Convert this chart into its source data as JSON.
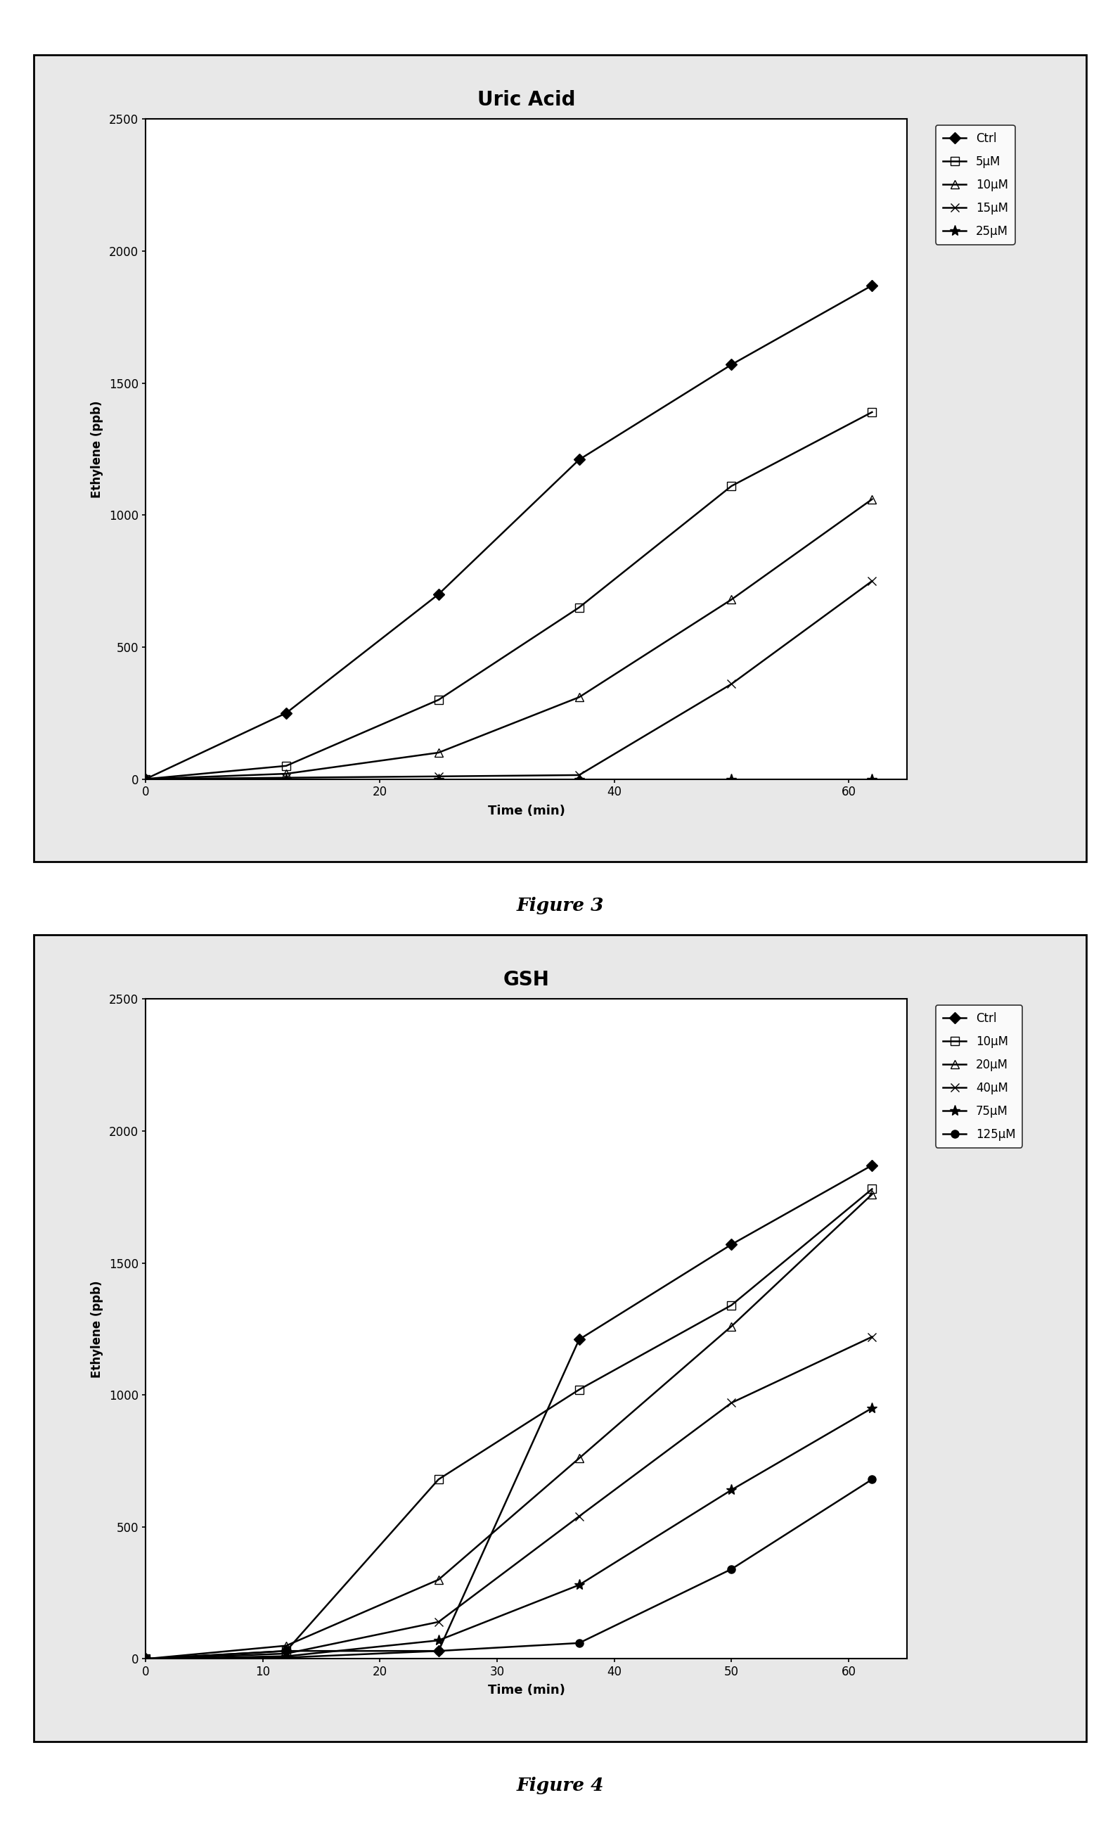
{
  "fig3": {
    "title": "Uric Acid",
    "xlabel": "Time (min)",
    "ylabel": "Ethylene (ppb)",
    "ylim": [
      0,
      2500
    ],
    "xlim": [
      0,
      65
    ],
    "xticks": [
      0,
      20,
      40,
      60
    ],
    "yticks": [
      0,
      500,
      1000,
      1500,
      2000,
      2500
    ],
    "series": [
      {
        "label": "Ctrl",
        "x": [
          0,
          12,
          25,
          37,
          50,
          62
        ],
        "y": [
          0,
          250,
          700,
          1210,
          1570,
          1870
        ],
        "marker": "D",
        "fillstyle": "full",
        "markersize": 8
      },
      {
        "label": "5μM",
        "x": [
          0,
          12,
          25,
          37,
          50,
          62
        ],
        "y": [
          0,
          50,
          300,
          650,
          1110,
          1390
        ],
        "marker": "s",
        "fillstyle": "none",
        "markersize": 8
      },
      {
        "label": "10μM",
        "x": [
          0,
          12,
          25,
          37,
          50,
          62
        ],
        "y": [
          0,
          20,
          100,
          310,
          680,
          1060
        ],
        "marker": "^",
        "fillstyle": "none",
        "markersize": 8
      },
      {
        "label": "15μM",
        "x": [
          0,
          12,
          25,
          37,
          50,
          62
        ],
        "y": [
          0,
          5,
          10,
          15,
          360,
          750
        ],
        "marker": "x",
        "fillstyle": "full",
        "markersize": 9
      },
      {
        "label": "25μM",
        "x": [
          0,
          12,
          25,
          37,
          50,
          62
        ],
        "y": [
          0,
          0,
          0,
          0,
          0,
          0
        ],
        "marker": "*",
        "fillstyle": "full",
        "markersize": 11
      }
    ]
  },
  "fig4": {
    "title": "GSH",
    "xlabel": "Time (min)",
    "ylabel": "Ethylene (ppb)",
    "ylim": [
      0,
      2500
    ],
    "xlim": [
      0,
      65
    ],
    "xticks": [
      0,
      10,
      20,
      30,
      40,
      50,
      60
    ],
    "yticks": [
      0,
      500,
      1000,
      1500,
      2000,
      2500
    ],
    "series": [
      {
        "label": "Ctrl",
        "x": [
          0,
          12,
          25,
          37,
          50,
          62
        ],
        "y": [
          0,
          30,
          30,
          1210,
          1570,
          1870
        ],
        "marker": "D",
        "fillstyle": "full",
        "markersize": 8
      },
      {
        "label": "10μM",
        "x": [
          0,
          12,
          25,
          37,
          50,
          62
        ],
        "y": [
          0,
          30,
          680,
          1020,
          1340,
          1780
        ],
        "marker": "s",
        "fillstyle": "none",
        "markersize": 8
      },
      {
        "label": "20μM",
        "x": [
          0,
          12,
          25,
          37,
          50,
          62
        ],
        "y": [
          0,
          50,
          300,
          760,
          1260,
          1760
        ],
        "marker": "^",
        "fillstyle": "none",
        "markersize": 8
      },
      {
        "label": "40μM",
        "x": [
          0,
          12,
          25,
          37,
          50,
          62
        ],
        "y": [
          0,
          20,
          140,
          540,
          970,
          1220
        ],
        "marker": "x",
        "fillstyle": "full",
        "markersize": 9
      },
      {
        "label": "75μM",
        "x": [
          0,
          12,
          25,
          37,
          50,
          62
        ],
        "y": [
          0,
          10,
          70,
          280,
          640,
          950
        ],
        "marker": "*",
        "fillstyle": "full",
        "markersize": 11
      },
      {
        "label": "125μM",
        "x": [
          0,
          12,
          25,
          37,
          50,
          62
        ],
        "y": [
          0,
          5,
          30,
          60,
          340,
          680
        ],
        "marker": "o",
        "fillstyle": "full",
        "markersize": 8
      }
    ]
  },
  "fig3_label": "Figure 3",
  "fig4_label": "Figure 4",
  "line_color": "#000000",
  "bg_color": "#ffffff",
  "outer_bg": "#e8e8e8"
}
